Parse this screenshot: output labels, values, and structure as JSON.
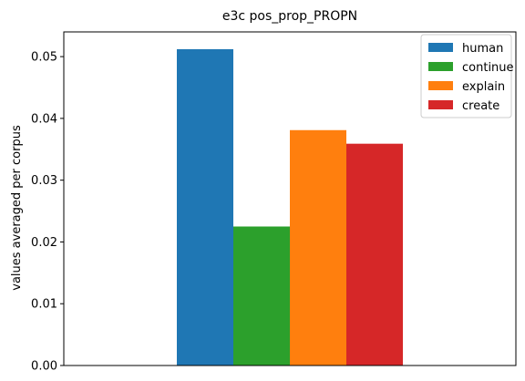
{
  "chart_data": {
    "type": "bar",
    "title": "e3c pos_prop_PROPN",
    "xlabel": "",
    "ylabel": "values averaged per corpus",
    "ylim": [
      0,
      0.054
    ],
    "yticks": [
      "0.00",
      "0.01",
      "0.02",
      "0.03",
      "0.04",
      "0.05"
    ],
    "grid": false,
    "legend_position": "top-right",
    "series": [
      {
        "name": "human",
        "value": 0.0512,
        "color": "#1f77b4"
      },
      {
        "name": "continue",
        "value": 0.0225,
        "color": "#2ca02c"
      },
      {
        "name": "explain",
        "value": 0.0381,
        "color": "#ff7f0e"
      },
      {
        "name": "create",
        "value": 0.0359,
        "color": "#d62728"
      }
    ]
  }
}
